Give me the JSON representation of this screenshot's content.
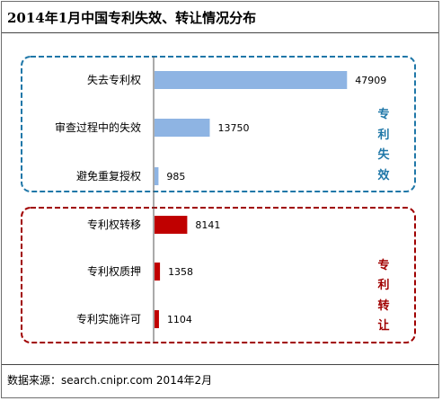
{
  "header": {
    "title": "2014年1月中国专利失效、转让情况分布"
  },
  "footer": {
    "source": "数据来源：search.cnipr.com  2014年2月"
  },
  "colors": {
    "invalid": "#8eb4e3",
    "transfer": "#c00000",
    "invalid_border": "#1f77a8",
    "transfer_border": "#a00000",
    "invalid_label": "#1f77a8",
    "transfer_label": "#a00000"
  },
  "chart_data": {
    "type": "bar",
    "orientation": "horizontal",
    "title": "2014年1月中国专利失效、转让情况分布",
    "categories": [
      "失去专利权",
      "审查过程中的失效",
      "避免重复授权",
      "专利权转移",
      "专利权质押",
      "专利实施许可"
    ],
    "values": [
      47909,
      13750,
      985,
      8141,
      1358,
      1104
    ],
    "xlim": [
      0,
      55000
    ],
    "grid": false,
    "groups": [
      {
        "name": "专利失效",
        "chars": [
          "专",
          "利",
          "失",
          "效"
        ],
        "categories": [
          "失去专利权",
          "审查过程中的失效",
          "避免重复授权"
        ],
        "color": "#8eb4e3"
      },
      {
        "name": "专利转让",
        "chars": [
          "专",
          "利",
          "转",
          "让"
        ],
        "categories": [
          "专利权转移",
          "专利权质押",
          "专利实施许可"
        ],
        "color": "#c00000"
      }
    ]
  }
}
